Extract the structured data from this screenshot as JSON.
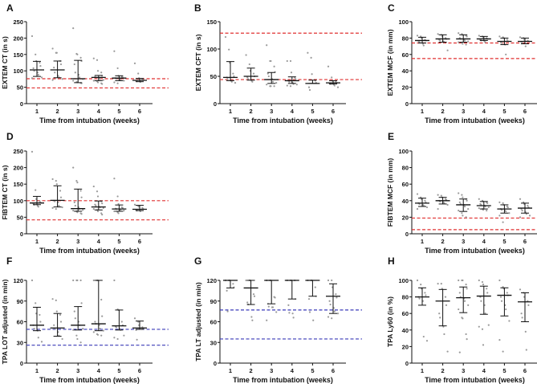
{
  "colors": {
    "reference_red": "#e03030",
    "reference_blue": "#3a3ab8",
    "points": "#9a9a9a",
    "summary": "#111111"
  },
  "chart_data": [
    {
      "id": "A",
      "type": "scatter",
      "panel_label": "A",
      "xlabel": "Time from intubation (weeks)",
      "ylabel": "EXTEM CT (in s)",
      "categories": [
        "1",
        "2",
        "3",
        "4",
        "5",
        "6"
      ],
      "ylim": [
        0,
        250
      ],
      "yticks": [
        0,
        50,
        100,
        150,
        200,
        250
      ],
      "reference_lines": [
        76,
        48
      ],
      "reference_color": "red",
      "grid": false,
      "groups": [
        {
          "median": 103,
          "lo": 83,
          "hi": 129,
          "points": [
            206,
            150,
            130,
            125,
            115,
            108,
            100,
            95,
            88,
            80,
            78
          ]
        },
        {
          "median": 103,
          "lo": 79,
          "hi": 130,
          "points": [
            168,
            155,
            155,
            130,
            120,
            110,
            95,
            85,
            80,
            75,
            72
          ]
        },
        {
          "median": 76,
          "lo": 64,
          "hi": 132,
          "points": [
            230,
            152,
            150,
            140,
            130,
            120,
            95,
            88,
            80,
            75,
            70,
            66,
            65,
            63,
            62
          ]
        },
        {
          "median": 80,
          "lo": 70,
          "hi": 86,
          "points": [
            138,
            133,
            100,
            95,
            85,
            82,
            80,
            78,
            75,
            72,
            70,
            68,
            65,
            62,
            60
          ]
        },
        {
          "median": 78,
          "lo": 70,
          "hi": 85,
          "points": [
            160,
            108,
            85,
            82,
            80,
            78,
            76,
            75,
            72,
            70,
            65,
            62
          ]
        },
        {
          "median": 71,
          "lo": 67,
          "hi": 77,
          "points": [
            123,
            92,
            78,
            75,
            72,
            70,
            68,
            66
          ]
        }
      ]
    },
    {
      "id": "B",
      "type": "scatter",
      "panel_label": "B",
      "xlabel": "Time from intubation (weeks)",
      "ylabel": "EXTEM CFT (in s)",
      "categories": [
        "1",
        "2",
        "3",
        "4",
        "5",
        "6"
      ],
      "ylim": [
        0,
        150
      ],
      "yticks": [
        0,
        50,
        100,
        150
      ],
      "reference_lines": [
        129,
        44
      ],
      "reference_color": "red",
      "grid": false,
      "groups": [
        {
          "median": 48,
          "lo": 42,
          "hi": 77,
          "points": [
            122,
            99,
            75,
            55,
            50,
            48,
            45,
            42,
            40,
            38
          ]
        },
        {
          "median": 50,
          "lo": 43,
          "hi": 65,
          "points": [
            89,
            72,
            60,
            55,
            50,
            48,
            45,
            42,
            40
          ]
        },
        {
          "median": 44,
          "lo": 37,
          "hi": 57,
          "points": [
            107,
            78,
            78,
            68,
            58,
            55,
            50,
            45,
            40,
            38,
            35,
            32,
            32,
            32
          ]
        },
        {
          "median": 42,
          "lo": 37,
          "hi": 49,
          "points": [
            78,
            78,
            57,
            48,
            45,
            42,
            40,
            38,
            36,
            35,
            33,
            32
          ]
        },
        {
          "median": 37,
          "lo": 37,
          "hi": 43,
          "points": [
            93,
            84,
            54,
            42,
            38,
            30,
            25
          ]
        },
        {
          "median": 38,
          "lo": 36,
          "hi": 42,
          "points": [
            68,
            48,
            42,
            40,
            38,
            37,
            36,
            35,
            33,
            30
          ]
        }
      ]
    },
    {
      "id": "C",
      "type": "scatter",
      "panel_label": "C",
      "xlabel": "Time from intubation (weeks)",
      "ylabel": "EXTEM MCF (in mm)",
      "categories": [
        "1",
        "2",
        "3",
        "4",
        "5",
        "6"
      ],
      "ylim": [
        0,
        100
      ],
      "yticks": [
        0,
        20,
        40,
        60,
        80,
        100
      ],
      "reference_lines": [
        74,
        55
      ],
      "reference_color": "red",
      "grid": false,
      "groups": [
        {
          "median": 77,
          "lo": 74,
          "hi": 81,
          "points": [
            83,
            82,
            80,
            78,
            77,
            76,
            75,
            73,
            71
          ]
        },
        {
          "median": 79,
          "lo": 75,
          "hi": 84,
          "points": [
            85,
            84,
            82,
            80,
            79,
            78,
            77,
            76,
            75,
            65
          ]
        },
        {
          "median": 79,
          "lo": 75,
          "hi": 84,
          "points": [
            86,
            85,
            84,
            83,
            82,
            80,
            79,
            78,
            77,
            76,
            75,
            74,
            73,
            72
          ]
        },
        {
          "median": 79,
          "lo": 77,
          "hi": 82,
          "points": [
            83,
            82,
            81,
            80,
            79,
            78,
            77,
            76,
            75
          ]
        },
        {
          "median": 76,
          "lo": 72,
          "hi": 80,
          "points": [
            82,
            81,
            80,
            78,
            76,
            75,
            74,
            72,
            60
          ]
        },
        {
          "median": 76,
          "lo": 73,
          "hi": 80,
          "points": [
            81,
            80,
            78,
            77,
            76,
            75,
            74,
            70
          ]
        }
      ]
    },
    {
      "id": "D",
      "type": "scatter",
      "panel_label": "D",
      "xlabel": "Time from intubation (weeks)",
      "ylabel": "FIBTEM CT (in s)",
      "categories": [
        "1",
        "2",
        "3",
        "4",
        "5",
        "6"
      ],
      "ylim": [
        0,
        250
      ],
      "yticks": [
        0,
        50,
        100,
        150,
        200,
        250
      ],
      "reference_lines": [
        100,
        42
      ],
      "reference_color": "red",
      "grid": false,
      "groups": [
        {
          "median": 93,
          "lo": 88,
          "hi": 113,
          "points": [
            248,
            132,
            105,
            98,
            95,
            92,
            88,
            85,
            82
          ]
        },
        {
          "median": 101,
          "lo": 81,
          "hi": 145,
          "points": [
            165,
            160,
            150,
            130,
            110,
            100,
            98,
            95,
            85,
            80,
            78,
            75
          ]
        },
        {
          "median": 76,
          "lo": 68,
          "hi": 135,
          "points": [
            200,
            160,
            155,
            130,
            110,
            95,
            85,
            80,
            75,
            72,
            70,
            68,
            65,
            62,
            60
          ]
        },
        {
          "median": 81,
          "lo": 72,
          "hi": 99,
          "points": [
            143,
            128,
            113,
            98,
            92,
            88,
            85,
            82,
            80,
            78,
            75,
            72,
            68,
            62,
            58
          ]
        },
        {
          "median": 75,
          "lo": 68,
          "hi": 87,
          "points": [
            167,
            113,
            90,
            80,
            78,
            76,
            75,
            73,
            72,
            70,
            68,
            65,
            62
          ]
        },
        {
          "median": 74,
          "lo": 70,
          "hi": 86,
          "points": [
            88,
            84,
            82,
            78,
            75,
            72,
            70,
            68
          ]
        }
      ]
    },
    {
      "id": "E",
      "type": "scatter",
      "panel_label": "E",
      "xlabel": "Time from intubation (weeks)",
      "ylabel": "FIBTEM MCF (in mm)",
      "categories": [
        "1",
        "2",
        "3",
        "4",
        "5",
        "6"
      ],
      "ylim": [
        0,
        100
      ],
      "yticks": [
        0,
        20,
        40,
        60,
        80,
        100
      ],
      "reference_lines": [
        19,
        5
      ],
      "reference_color": "red",
      "grid": false,
      "groups": [
        {
          "median": 37,
          "lo": 33,
          "hi": 43,
          "points": [
            48,
            44,
            42,
            40,
            38,
            37,
            36,
            35,
            34,
            32,
            30
          ]
        },
        {
          "median": 40,
          "lo": 36,
          "hi": 44,
          "points": [
            47,
            46,
            44,
            42,
            41,
            40,
            39,
            38,
            37,
            35,
            30
          ]
        },
        {
          "median": 35,
          "lo": 27,
          "hi": 42,
          "points": [
            49,
            47,
            44,
            42,
            40,
            38,
            36,
            35,
            33,
            30,
            28,
            25,
            22,
            20
          ]
        },
        {
          "median": 34,
          "lo": 30,
          "hi": 39,
          "points": [
            42,
            40,
            39,
            38,
            37,
            36,
            35,
            34,
            33,
            32,
            31,
            30,
            29,
            28
          ]
        },
        {
          "median": 30,
          "lo": 25,
          "hi": 35,
          "points": [
            38,
            37,
            35,
            33,
            32,
            30,
            29,
            28,
            27,
            25,
            22,
            14
          ]
        },
        {
          "median": 31,
          "lo": 25,
          "hi": 37,
          "points": [
            42,
            38,
            36,
            34,
            32,
            30,
            28,
            26,
            24,
            22,
            20
          ]
        }
      ]
    },
    {
      "id": "F",
      "type": "scatter",
      "panel_label": "F",
      "xlabel": "Time from intubation (weeks)",
      "ylabel": "TPA LOT adjusted (in min)",
      "categories": [
        "1",
        "2",
        "3",
        "4",
        "5",
        "6"
      ],
      "ylim": [
        0,
        120
      ],
      "yticks": [
        0,
        30,
        60,
        90,
        120
      ],
      "reference_lines": [
        49,
        26
      ],
      "reference_color": "blue",
      "grid": false,
      "groups": [
        {
          "median": 55,
          "lo": 47,
          "hi": 81,
          "points": [
            120,
            87,
            72,
            70,
            60,
            55,
            50,
            47,
            37,
            31
          ]
        },
        {
          "median": 51,
          "lo": 39,
          "hi": 72,
          "points": [
            93,
            91,
            75,
            70,
            60,
            55,
            50,
            45,
            40,
            35
          ]
        },
        {
          "median": 55,
          "lo": 48,
          "hi": 82,
          "points": [
            120,
            120,
            120,
            120,
            87,
            75,
            65,
            60,
            55,
            50,
            48,
            40,
            35,
            30
          ]
        },
        {
          "median": 57,
          "lo": 47,
          "hi": 120,
          "points": [
            120,
            120,
            120,
            92,
            68,
            60,
            57,
            55,
            50,
            47,
            45,
            42,
            41,
            40
          ]
        },
        {
          "median": 54,
          "lo": 48,
          "hi": 77,
          "points": [
            120,
            78,
            77,
            60,
            55,
            53,
            52,
            50,
            48,
            40,
            37,
            35
          ]
        },
        {
          "median": 51,
          "lo": 49,
          "hi": 61,
          "points": [
            65,
            60,
            55,
            52,
            50,
            48,
            34
          ]
        }
      ]
    },
    {
      "id": "G",
      "type": "scatter",
      "panel_label": "G",
      "xlabel": "Time from intubation (weeks)",
      "ylabel": "TPA LT adjusted (in min)",
      "categories": [
        "1",
        "2",
        "3",
        "4",
        "5",
        "6"
      ],
      "ylim": [
        0,
        120
      ],
      "yticks": [
        0,
        30,
        60,
        90,
        120
      ],
      "reference_lines": [
        77,
        35
      ],
      "reference_color": "blue",
      "grid": false,
      "groups": [
        {
          "median": 120,
          "lo": 109,
          "hi": 120,
          "points": [
            120,
            120,
            120,
            115,
            110,
            105,
            75
          ]
        },
        {
          "median": 109,
          "lo": 85,
          "hi": 120,
          "points": [
            120,
            120,
            120,
            100,
            97,
            88,
            85,
            67,
            62
          ]
        },
        {
          "median": 120,
          "lo": 86,
          "hi": 120,
          "points": [
            120,
            120,
            120,
            96,
            95,
            86,
            82,
            81,
            81,
            74,
            62
          ]
        },
        {
          "median": 120,
          "lo": 93,
          "hi": 120,
          "points": [
            120,
            120,
            120,
            120,
            93,
            84,
            73,
            72,
            66
          ]
        },
        {
          "median": 120,
          "lo": 97,
          "hi": 120,
          "points": [
            120,
            120,
            120,
            110,
            97,
            93,
            74,
            62
          ]
        },
        {
          "median": 97,
          "lo": 72,
          "hi": 115,
          "points": [
            120,
            120,
            110,
            100,
            95,
            90,
            85,
            80,
            75,
            72,
            67,
            65
          ]
        }
      ]
    },
    {
      "id": "H",
      "type": "scatter",
      "panel_label": "H",
      "xlabel": "Time from intubation (weeks)",
      "ylabel": "TPA Ly60 (in %)",
      "categories": [
        "1",
        "2",
        "3",
        "4",
        "5",
        "6"
      ],
      "ylim": [
        0,
        100
      ],
      "yticks": [
        0,
        20,
        40,
        60,
        80,
        100
      ],
      "reference_lines": [],
      "reference_color": "none",
      "grid": false,
      "groups": [
        {
          "median": 80,
          "lo": 70,
          "hi": 91,
          "points": [
            100,
            95,
            90,
            85,
            82,
            80,
            78,
            75,
            32,
            27
          ]
        },
        {
          "median": 75,
          "lo": 45,
          "hi": 89,
          "points": [
            96,
            96,
            90,
            80,
            70,
            60,
            55,
            44,
            35,
            14
          ]
        },
        {
          "median": 79,
          "lo": 61,
          "hi": 92,
          "points": [
            100,
            100,
            100,
            95,
            90,
            85,
            80,
            78,
            75,
            70,
            65,
            55,
            54,
            35,
            29,
            13
          ]
        },
        {
          "median": 81,
          "lo": 59,
          "hi": 93,
          "points": [
            100,
            98,
            95,
            90,
            85,
            80,
            75,
            70,
            60,
            46,
            44,
            41,
            22
          ]
        },
        {
          "median": 82,
          "lo": 57,
          "hi": 91,
          "points": [
            100,
            92,
            90,
            85,
            82,
            80,
            75,
            70,
            65,
            51,
            28,
            14
          ]
        },
        {
          "median": 74,
          "lo": 50,
          "hi": 85,
          "points": [
            89,
            85,
            80,
            75,
            70,
            60,
            55,
            38,
            16
          ]
        }
      ]
    }
  ]
}
